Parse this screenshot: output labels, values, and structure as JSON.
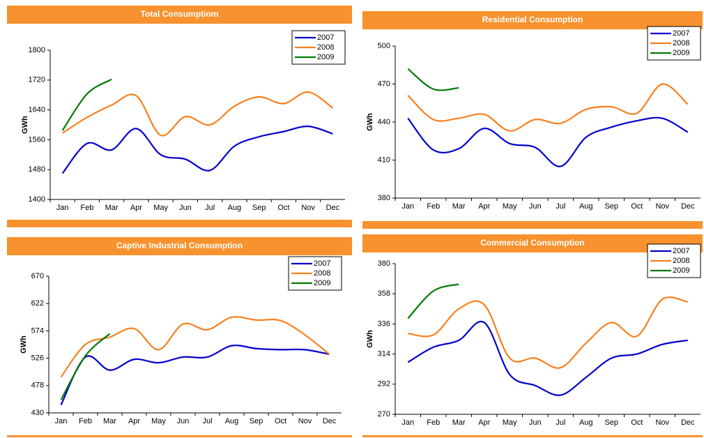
{
  "chart_data": [
    {
      "type": "line",
      "title": "Total Consumptiom",
      "ylabel": "GWh",
      "categories": [
        "Jan",
        "Feb",
        "Mar",
        "Apr",
        "May",
        "Jun",
        "Jul",
        "Aug",
        "Sep",
        "Oct",
        "Nov",
        "Dec"
      ],
      "series": [
        {
          "name": "2007",
          "color": "#0000cc",
          "values": [
            1470,
            1550,
            1533,
            1590,
            1520,
            1508,
            1478,
            1543,
            1568,
            1582,
            1596,
            1576
          ]
        },
        {
          "name": "2008",
          "color": "#f7801e",
          "values": [
            1578,
            1620,
            1653,
            1678,
            1572,
            1622,
            1600,
            1650,
            1675,
            1657,
            1688,
            1645
          ]
        },
        {
          "name": "2009",
          "color": "#007a00",
          "values": [
            1585,
            1683,
            1722,
            null,
            null,
            null,
            null,
            null,
            null,
            null,
            null,
            null
          ]
        }
      ],
      "ylim": [
        1400,
        1800
      ],
      "yticks": [
        1400,
        1480,
        1560,
        1640,
        1720,
        1800
      ],
      "legend": "upper right"
    },
    {
      "type": "line",
      "title": "Residential Consumption",
      "ylabel": "GWh",
      "categories": [
        "Jan",
        "Feb",
        "Mar",
        "Apr",
        "May",
        "Jun",
        "Jul",
        "Aug",
        "Sep",
        "Oct",
        "Nov",
        "Dec"
      ],
      "series": [
        {
          "name": "2007",
          "color": "#0000cc",
          "values": [
            443,
            418,
            419,
            435,
            423,
            420,
            405,
            428,
            436,
            441,
            443,
            432
          ]
        },
        {
          "name": "2008",
          "color": "#f7801e",
          "values": [
            461,
            442,
            443,
            446,
            433,
            442,
            439,
            450,
            452,
            447,
            470,
            454
          ]
        },
        {
          "name": "2009",
          "color": "#007a00",
          "values": [
            482,
            466,
            467,
            null,
            null,
            null,
            null,
            null,
            null,
            null,
            null,
            null
          ]
        }
      ],
      "ylim": [
        380,
        500
      ],
      "yticks": [
        380,
        410,
        440,
        470,
        500
      ],
      "legend": "upper right"
    },
    {
      "type": "line",
      "title": "Captive Industrial Consumption",
      "ylabel": "GWh",
      "categories": [
        "Jan",
        "Feb",
        "Mar",
        "Apr",
        "May",
        "Jun",
        "Jul",
        "Aug",
        "Sep",
        "Oct",
        "Nov",
        "Dec"
      ],
      "series": [
        {
          "name": "2007",
          "color": "#0000cc",
          "values": [
            444,
            528,
            505,
            524,
            518,
            528,
            528,
            548,
            543,
            541,
            541,
            533
          ]
        },
        {
          "name": "2008",
          "color": "#f7801e",
          "values": [
            493,
            550,
            563,
            578,
            541,
            586,
            576,
            598,
            593,
            592,
            567,
            533
          ]
        },
        {
          "name": "2009",
          "color": "#007a00",
          "values": [
            453,
            530,
            569,
            null,
            null,
            null,
            null,
            null,
            null,
            null,
            null,
            null
          ]
        }
      ],
      "ylim": [
        430,
        670
      ],
      "yticks": [
        430,
        478,
        526,
        574,
        622,
        670
      ],
      "legend": "upper right"
    },
    {
      "type": "line",
      "title": "Commercial Consumption",
      "ylabel": "GWh",
      "categories": [
        "Jan",
        "Feb",
        "Mar",
        "Apr",
        "May",
        "Jun",
        "Jul",
        "Aug",
        "Sep",
        "Oct",
        "Nov",
        "Dec"
      ],
      "series": [
        {
          "name": "2007",
          "color": "#0000cc",
          "values": [
            308,
            319,
            324,
            337,
            299,
            291,
            284,
            297,
            311,
            314,
            321,
            324
          ]
        },
        {
          "name": "2008",
          "color": "#f7801e",
          "values": [
            329,
            328,
            347,
            350,
            311,
            311,
            304,
            322,
            337,
            327,
            354,
            352
          ]
        },
        {
          "name": "2009",
          "color": "#007a00",
          "values": [
            340,
            360,
            365,
            null,
            null,
            null,
            null,
            null,
            null,
            null,
            null,
            null
          ]
        }
      ],
      "ylim": [
        270,
        380
      ],
      "yticks": [
        270,
        292,
        314,
        336,
        358,
        380
      ],
      "legend": "upper right"
    }
  ]
}
